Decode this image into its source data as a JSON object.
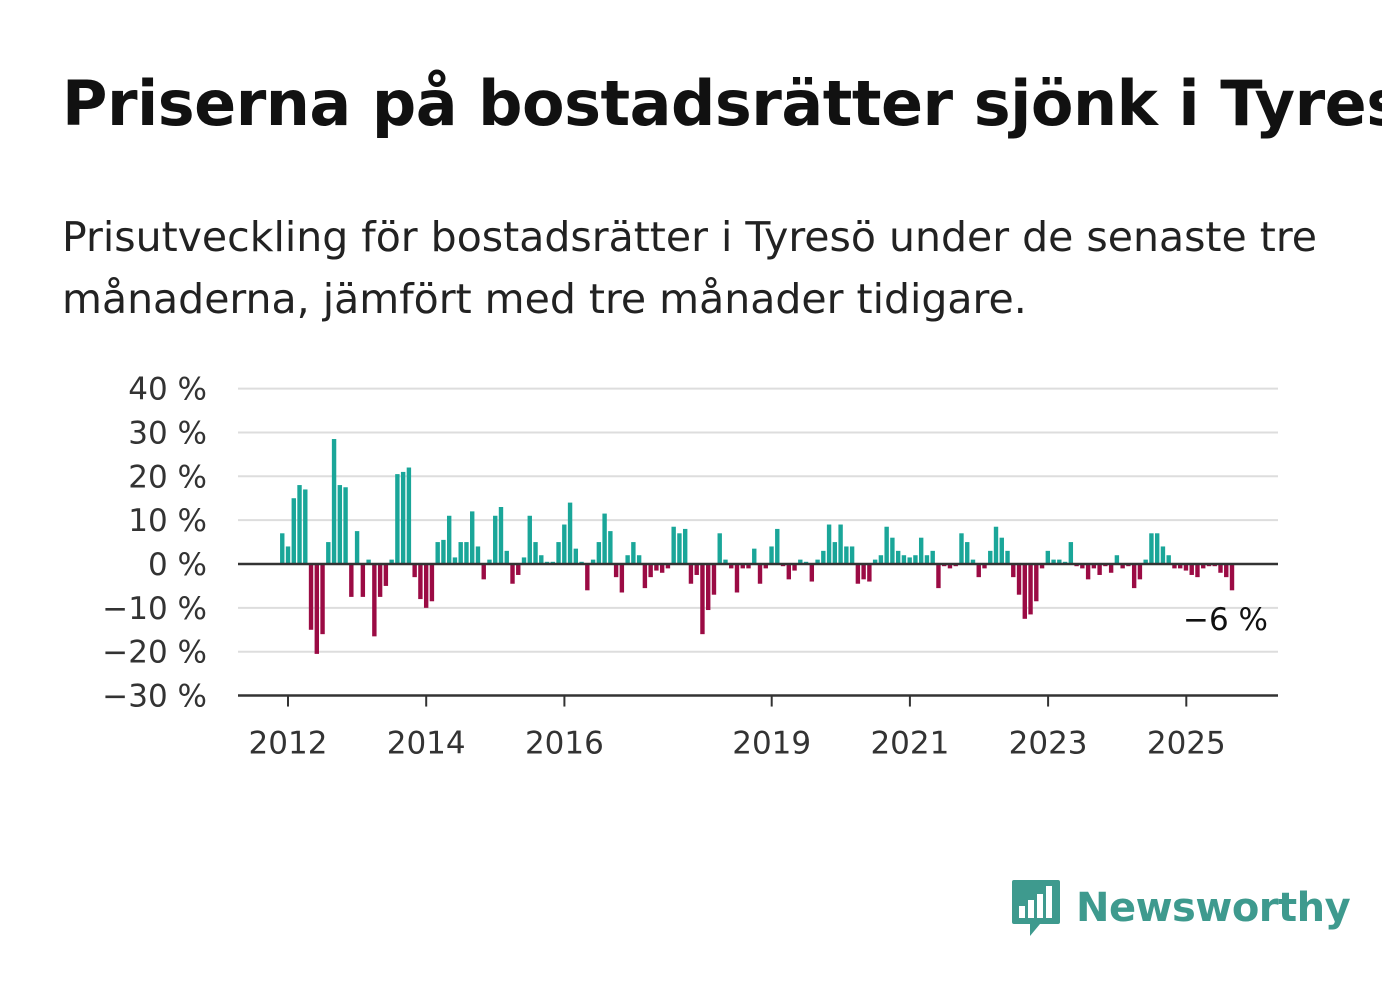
{
  "header": {
    "title": "Priserna på bostadsrätter sjönk i Tyresö",
    "subtitle": "Prisutveckling för bostadsrätter i Tyresö under de senaste tre månaderna, jämfört med tre månader tidigare."
  },
  "brand": {
    "name": "Newsworthy",
    "color": "#3e9a8e",
    "icon": "newsworthy-logo-icon"
  },
  "colors": {
    "positive": "#1aa699",
    "negative": "#9b0b44",
    "grid": "#dddddd",
    "axis": "#333333"
  },
  "chart_data": {
    "type": "bar",
    "title": "Priserna på bostadsrätter sjönk i Tyresö",
    "xlabel": "",
    "ylabel": "",
    "ylim": [
      -30,
      40
    ],
    "y_ticks": [
      "40 %",
      "30 %",
      "20 %",
      "10 %",
      "0 %",
      "−10 %",
      "−20 %",
      "−30 %"
    ],
    "y_tick_values": [
      40,
      30,
      20,
      10,
      0,
      -10,
      -20,
      -30
    ],
    "x_ticks": [
      "2012",
      "2014",
      "2016",
      "2019",
      "2021",
      "2023",
      "2025"
    ],
    "x_tick_values": [
      2012,
      2014,
      2016,
      2019,
      2021,
      2023,
      2025
    ],
    "x_start": 2011.917,
    "x_step": 0.0833,
    "grid": true,
    "annotation": {
      "text": "−6 %",
      "value": -6
    },
    "values": [
      7,
      4,
      15,
      18,
      17,
      -15,
      -20.5,
      -16,
      5,
      28.5,
      18,
      17.5,
      -7.5,
      7.5,
      -7.5,
      1,
      -16.5,
      -7.5,
      -5,
      1,
      20.5,
      21,
      22,
      -3,
      -8,
      -10,
      -8.5,
      5,
      5.5,
      11,
      1.5,
      5,
      5,
      12,
      4,
      -3.5,
      1,
      11,
      13,
      3,
      -4.5,
      -2.5,
      1.5,
      11,
      5,
      2,
      0.5,
      0.5,
      5,
      9,
      14,
      3.5,
      0.5,
      -6,
      1,
      5,
      11.5,
      7.5,
      -3,
      -6.5,
      2,
      5,
      2,
      -5.5,
      -3,
      -1.5,
      -2,
      -1,
      8.5,
      7,
      8,
      -4.5,
      -2.5,
      -16,
      -10.5,
      -7,
      7,
      1,
      -1,
      -6.5,
      -1,
      -1,
      3.5,
      -4.5,
      -1,
      4,
      8,
      -0.5,
      -3.5,
      -1.5,
      1,
      0.5,
      -4,
      1,
      3,
      9,
      5,
      9,
      4,
      4,
      -4.5,
      -3.5,
      -4,
      1,
      2,
      8.5,
      6,
      3,
      2,
      1.5,
      2,
      6,
      2,
      3,
      -5.5,
      -0.5,
      -1,
      -0.5,
      7,
      5,
      1,
      -3,
      -1,
      3,
      8.5,
      6,
      3,
      -3,
      -7,
      -12.5,
      -11.5,
      -8.5,
      -1,
      3,
      1,
      1,
      0.5,
      5,
      -0.5,
      -1,
      -3.5,
      -1,
      -2.5,
      -0.5,
      -2,
      2,
      -1,
      -0.5,
      -5.5,
      -3.5,
      1,
      7,
      7,
      4,
      2,
      -1,
      -1,
      -1.5,
      -2.5,
      -3,
      -1,
      -0.5,
      -0.5,
      -2,
      -3,
      -6
    ]
  }
}
